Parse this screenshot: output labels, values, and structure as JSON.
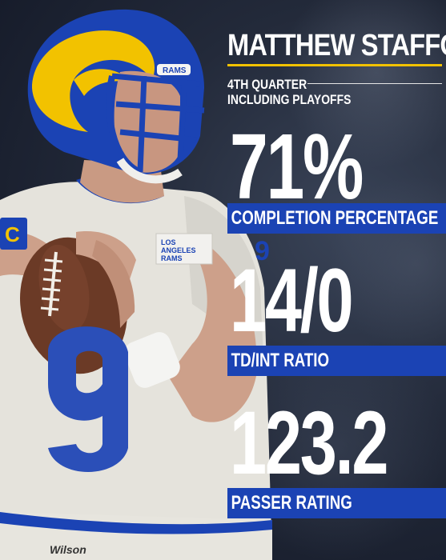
{
  "player_name": "MATTHEW STAFFORD",
  "subtitle_line1": "4TH QUARTER",
  "subtitle_line2": "INCLUDING PLAYOFFS",
  "stats": [
    {
      "value": "71%",
      "label": "COMPLETION PERCENTAGE"
    },
    {
      "value": "14/0",
      "label": "TD/INT RATIO"
    },
    {
      "value": "123.2",
      "label": "PASSER RATING"
    }
  ],
  "jersey": {
    "number": "9",
    "patch_text": "LOS ANGELES RAMS",
    "captain_letter": "C",
    "helmet_text": "RAMS",
    "ball_brand": "Wilson"
  },
  "colors": {
    "rams_blue": "#1b43b4",
    "rams_yellow": "#f2c200",
    "jersey_white": "#e8e6df"
  }
}
